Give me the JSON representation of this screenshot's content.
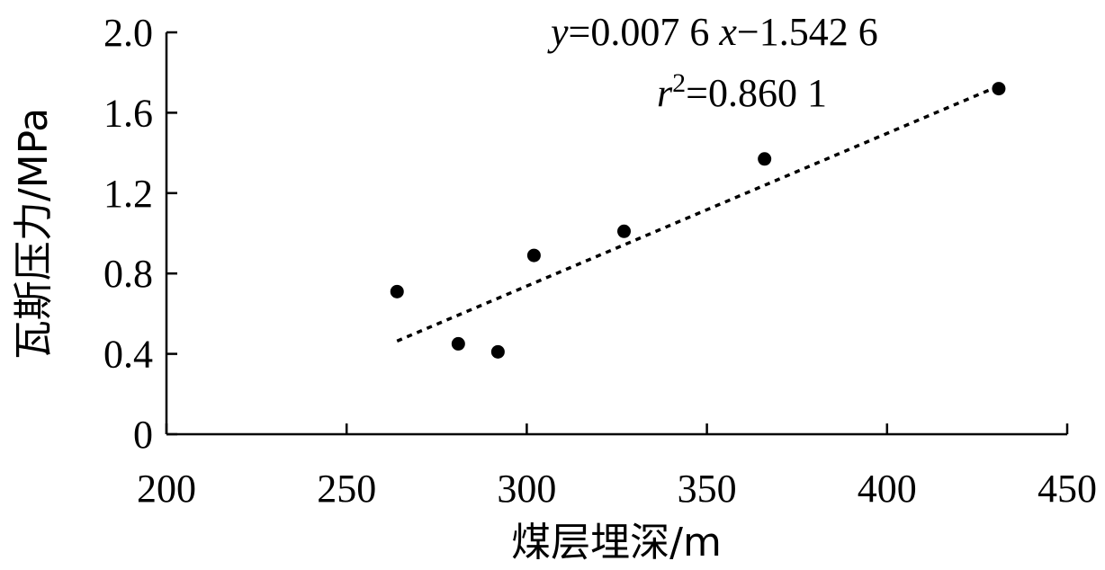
{
  "chart_data": {
    "type": "scatter",
    "title": "",
    "xlabel": "煤层埋深/m",
    "ylabel": "瓦斯压力/MPa",
    "xlim": [
      200,
      450
    ],
    "ylim": [
      0,
      2.0
    ],
    "xticks": [
      "200",
      "250",
      "300",
      "350",
      "400",
      "450"
    ],
    "yticks": [
      "0",
      "0.4",
      "0.8",
      "1.2",
      "1.6",
      "2.0"
    ],
    "xtick_values": [
      200,
      250,
      300,
      350,
      400,
      450
    ],
    "ytick_values": [
      0,
      0.4,
      0.8,
      1.2,
      1.6,
      2.0
    ],
    "grid": false,
    "series": [
      {
        "points": [
          {
            "x": 264,
            "y": 0.71
          },
          {
            "x": 281,
            "y": 0.45
          },
          {
            "x": 292,
            "y": 0.41
          },
          {
            "x": 302,
            "y": 0.89
          },
          {
            "x": 327,
            "y": 1.01
          },
          {
            "x": 366,
            "y": 1.37
          },
          {
            "x": 431,
            "y": 1.72
          }
        ]
      }
    ],
    "trendline": {
      "style": "dotted",
      "slope": 0.0076,
      "intercept": -1.5426,
      "x_range": [
        264,
        431
      ]
    },
    "annotations": {
      "eq_y": "y",
      "eq_body": "=0.007 6 ",
      "eq_x": "x",
      "eq_rest": "−1.542 6",
      "r_symbol": "r",
      "r_sup": "2",
      "r_value": "=0.860 1"
    }
  }
}
